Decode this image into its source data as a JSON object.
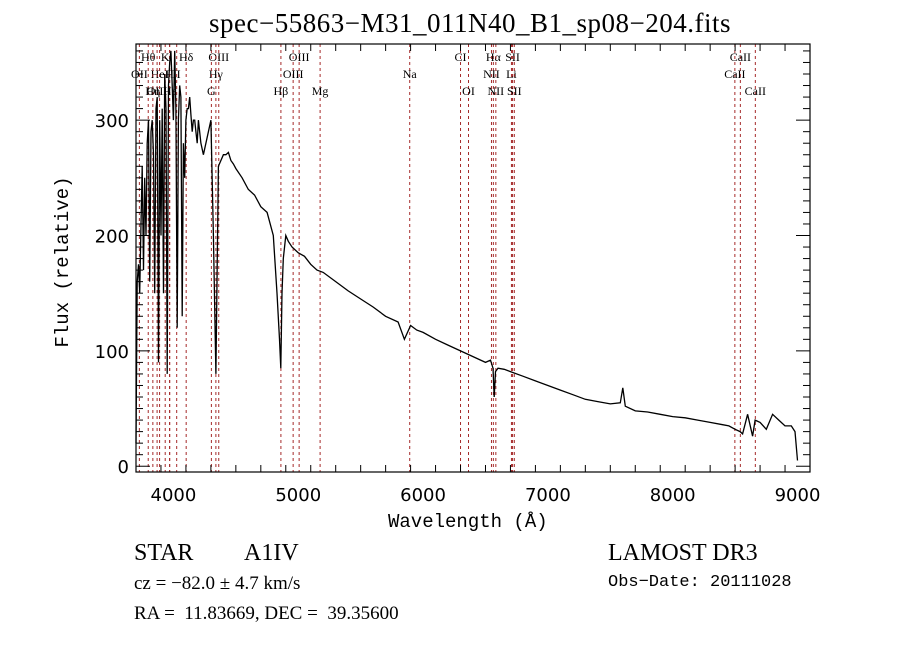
{
  "chart_data": {
    "type": "line",
    "title": "spec−55863−M31_011N40_B1_sp08−204.fits",
    "xlabel": "Wavelength (Å)",
    "ylabel": "Flux (relative)",
    "xlim": [
      3700,
      9100
    ],
    "ylim": [
      -5,
      366
    ],
    "x_ticks": [
      4000,
      5000,
      6000,
      7000,
      8000,
      9000
    ],
    "x_tick_labels": [
      "4000",
      "5000",
      "6000",
      "7000",
      "8000",
      "9000"
    ],
    "y_ticks": [
      0,
      100,
      200,
      300
    ],
    "y_tick_labels": [
      "0",
      "100",
      "200",
      "300"
    ],
    "grid": false,
    "legend": "none",
    "line_color": "#000000",
    "marker_line_color": "#a52a2a",
    "spectrum": {
      "name": "flux",
      "x": [
        3700,
        3710,
        3720,
        3730,
        3740,
        3750,
        3760,
        3770,
        3780,
        3790,
        3800,
        3810,
        3820,
        3830,
        3840,
        3850,
        3860,
        3870,
        3880,
        3890,
        3900,
        3910,
        3920,
        3930,
        3940,
        3950,
        3960,
        3970,
        3980,
        3990,
        4000,
        4010,
        4020,
        4030,
        4040,
        4050,
        4060,
        4070,
        4080,
        4090,
        4100,
        4110,
        4120,
        4130,
        4140,
        4150,
        4160,
        4170,
        4180,
        4190,
        4200,
        4220,
        4240,
        4260,
        4280,
        4300,
        4320,
        4340,
        4360,
        4380,
        4400,
        4420,
        4440,
        4460,
        4480,
        4500,
        4550,
        4600,
        4650,
        4700,
        4750,
        4800,
        4830,
        4850,
        4860,
        4870,
        4880,
        4900,
        4920,
        4950,
        5000,
        5050,
        5100,
        5150,
        5200,
        5300,
        5400,
        5500,
        5600,
        5700,
        5800,
        5850,
        5900,
        5950,
        6000,
        6100,
        6200,
        6300,
        6400,
        6500,
        6540,
        6560,
        6570,
        6580,
        6600,
        6650,
        6700,
        6800,
        6900,
        7000,
        7100,
        7200,
        7300,
        7400,
        7500,
        7580,
        7600,
        7620,
        7700,
        7800,
        7900,
        8000,
        8100,
        8200,
        8300,
        8400,
        8450,
        8500,
        8540,
        8560,
        8600,
        8640,
        8660,
        8700,
        8750,
        8800,
        8850,
        8900,
        8950,
        8980,
        9000
      ],
      "values": [
        20,
        160,
        175,
        150,
        210,
        260,
        170,
        250,
        200,
        280,
        300,
        160,
        290,
        300,
        270,
        150,
        310,
        320,
        90,
        300,
        200,
        310,
        150,
        340,
        310,
        80,
        330,
        350,
        360,
        330,
        300,
        360,
        310,
        120,
        300,
        330,
        320,
        130,
        280,
        250,
        300,
        310,
        310,
        320,
        305,
        290,
        300,
        300,
        290,
        280,
        300,
        280,
        270,
        280,
        290,
        300,
        200,
        80,
        260,
        265,
        270,
        270,
        272,
        265,
        262,
        258,
        250,
        240,
        235,
        225,
        220,
        200,
        150,
        110,
        85,
        150,
        180,
        200,
        195,
        190,
        185,
        182,
        175,
        170,
        168,
        160,
        152,
        145,
        138,
        130,
        125,
        110,
        122,
        118,
        116,
        110,
        105,
        100,
        95,
        90,
        92,
        85,
        60,
        82,
        85,
        84,
        82,
        78,
        74,
        70,
        66,
        62,
        58,
        56,
        54,
        55,
        68,
        52,
        48,
        47,
        45,
        43,
        42,
        40,
        38,
        36,
        35,
        32,
        30,
        28,
        45,
        26,
        40,
        38,
        32,
        45,
        40,
        35,
        35,
        30,
        5
      ]
    },
    "line_markers": [
      {
        "label": "Hθ",
        "x": 3798,
        "row": 1
      },
      {
        "label": "K",
        "x": 3934,
        "row": 1
      },
      {
        "label": "Hδ",
        "x": 4102,
        "row": 1
      },
      {
        "label": "OIII",
        "x": 4363,
        "row": 1
      },
      {
        "label": "OIII",
        "x": 5007,
        "row": 1
      },
      {
        "label": "CI",
        "x": 6300,
        "row": 1
      },
      {
        "label": "Hα",
        "x": 6563,
        "row": 1
      },
      {
        "label": "SII",
        "x": 6717,
        "row": 1
      },
      {
        "label": "CaII",
        "x": 8542,
        "row": 1
      },
      {
        "label": "OII",
        "x": 3727,
        "row": 2
      },
      {
        "label": "HeI",
        "x": 3889,
        "row": 2
      },
      {
        "label": "H",
        "x": 3969,
        "row": 2
      },
      {
        "label": "II",
        "x": 4026,
        "row": 2
      },
      {
        "label": "Hγ",
        "x": 4340,
        "row": 2
      },
      {
        "label": "OIII",
        "x": 4959,
        "row": 2
      },
      {
        "label": "Na",
        "x": 5893,
        "row": 2
      },
      {
        "label": "NII",
        "x": 6548,
        "row": 2
      },
      {
        "label": "Li",
        "x": 6708,
        "row": 2
      },
      {
        "label": "CaII",
        "x": 8498,
        "row": 2
      },
      {
        "label": "OIII",
        "x": 3869,
        "row": 3
      },
      {
        "label": "Hη",
        "x": 3835,
        "row": 3
      },
      {
        "label": "Hε",
        "x": 3970,
        "row": 3
      },
      {
        "label": "G",
        "x": 4304,
        "row": 3
      },
      {
        "label": "Hβ",
        "x": 4861,
        "row": 3
      },
      {
        "label": "Mg",
        "x": 5175,
        "row": 3
      },
      {
        "label": "OI",
        "x": 6364,
        "row": 3
      },
      {
        "label": "NII",
        "x": 6583,
        "row": 3
      },
      {
        "label": "SII",
        "x": 6731,
        "row": 3
      },
      {
        "label": "CaII",
        "x": 8662,
        "row": 3
      }
    ]
  },
  "info": {
    "star_type": "STAR",
    "star_class": "A1IV",
    "survey": "LAMOST DR3",
    "cz": "cz = −82.0 ± 4.7 km/s",
    "obs_date": "Obs−Date: 20111028",
    "radec": "RA =  11.83669, DEC =  39.35600"
  }
}
